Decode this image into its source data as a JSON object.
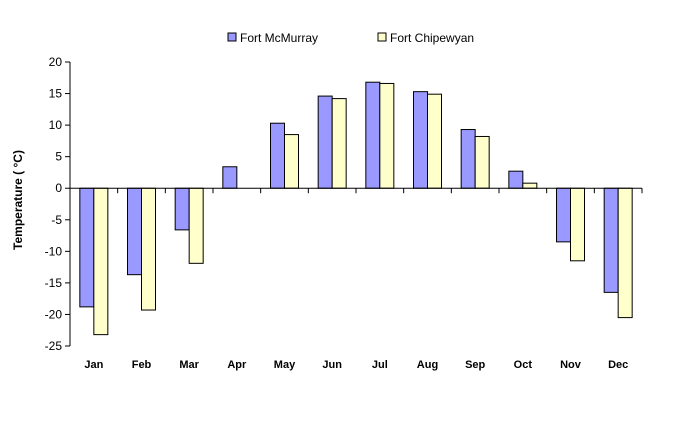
{
  "chart_data": {
    "type": "bar",
    "title": "",
    "xlabel": "",
    "ylabel": "Temperature ( °C)",
    "ylim": [
      -25,
      20
    ],
    "yticks": [
      20,
      15,
      10,
      5,
      0,
      -5,
      -10,
      -15,
      -20,
      -25
    ],
    "grid": false,
    "legend_position": "top",
    "categories": [
      "Jan",
      "Feb",
      "Mar",
      "Apr",
      "May",
      "Jun",
      "Jul",
      "Aug",
      "Sep",
      "Oct",
      "Nov",
      "Dec"
    ],
    "series": [
      {
        "name": "Fort McMurray",
        "color": "#9999ff",
        "values": [
          -18.8,
          -13.7,
          -6.6,
          3.4,
          10.3,
          14.6,
          16.8,
          15.3,
          9.3,
          2.7,
          -8.5,
          -16.5
        ]
      },
      {
        "name": "Fort Chipewyan",
        "color": "#ffffcc",
        "values": [
          -23.2,
          -19.3,
          -11.9,
          0,
          8.5,
          14.2,
          16.6,
          14.9,
          8.2,
          0.8,
          -11.5,
          -20.5
        ]
      }
    ]
  }
}
